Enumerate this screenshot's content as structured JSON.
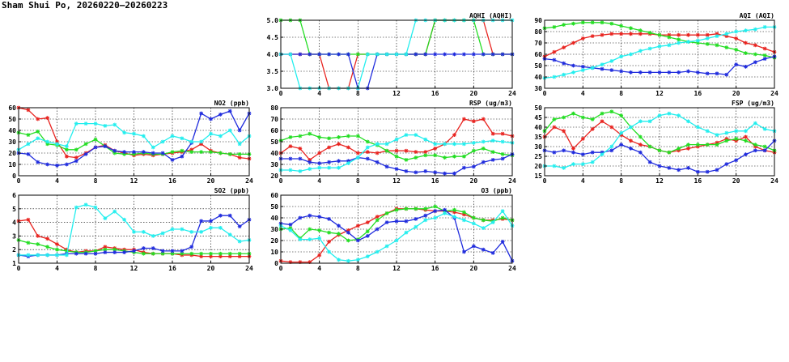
{
  "page": {
    "title": "Sham Shui Po, 20260220–20260223"
  },
  "colors": {
    "red": "#e8231f",
    "green": "#22dd22",
    "blue": "#1f2bdd",
    "cyan": "#22eeee"
  },
  "chart_data": [
    {
      "id": "no2",
      "type": "line",
      "title": "NO2 (ppb)",
      "xlim": [
        0,
        24
      ],
      "ylim": [
        0,
        60
      ],
      "xticks": [
        0,
        4,
        8,
        12,
        16,
        20,
        24
      ],
      "yticks": [
        0,
        10,
        20,
        30,
        40,
        50,
        60
      ],
      "x": [
        0,
        1,
        2,
        3,
        4,
        5,
        6,
        7,
        8,
        9,
        10,
        11,
        12,
        13,
        14,
        15,
        16,
        17,
        18,
        19,
        20,
        21,
        22,
        23,
        24
      ],
      "series": [
        {
          "color": "red",
          "values": [
            60,
            58,
            50,
            51,
            30,
            17,
            16,
            20,
            25,
            27,
            22,
            20,
            18,
            19,
            18,
            19,
            20,
            21,
            23,
            28,
            22,
            20,
            19,
            16,
            15
          ]
        },
        {
          "color": "green",
          "values": [
            38,
            36,
            39,
            28,
            27,
            23,
            23,
            28,
            32,
            26,
            20,
            19,
            19,
            20,
            19,
            19,
            21,
            22,
            21,
            21,
            21,
            20,
            19,
            19,
            19
          ]
        },
        {
          "color": "blue",
          "values": [
            20,
            19,
            12,
            10,
            9,
            10,
            13,
            19,
            25,
            26,
            22,
            21,
            21,
            21,
            20,
            20,
            14,
            17,
            29,
            55,
            50,
            54,
            57,
            40,
            55
          ]
        },
        {
          "color": "cyan",
          "values": [
            23,
            28,
            33,
            30,
            28,
            26,
            46,
            46,
            46,
            44,
            45,
            38,
            37,
            35,
            25,
            30,
            35,
            33,
            30,
            30,
            37,
            35,
            40,
            28,
            35
          ]
        }
      ]
    },
    {
      "id": "so2",
      "type": "line",
      "title": "SO2 (ppb)",
      "xlim": [
        0,
        24
      ],
      "ylim": [
        1,
        6
      ],
      "xticks": [
        0,
        4,
        8,
        12,
        16,
        20,
        24
      ],
      "yticks": [
        1,
        2,
        3,
        4,
        5,
        6
      ],
      "x": [
        0,
        1,
        2,
        3,
        4,
        5,
        6,
        7,
        8,
        9,
        10,
        11,
        12,
        13,
        14,
        15,
        16,
        17,
        18,
        19,
        20,
        21,
        22,
        23,
        24
      ],
      "series": [
        {
          "color": "red",
          "values": [
            4.1,
            4.2,
            3.0,
            2.8,
            2.4,
            2.0,
            1.8,
            1.9,
            1.9,
            2.2,
            2.1,
            2.0,
            2.0,
            1.8,
            1.7,
            1.7,
            1.7,
            1.6,
            1.6,
            1.5,
            1.5,
            1.5,
            1.5,
            1.5,
            1.5
          ]
        },
        {
          "color": "green",
          "values": [
            2.7,
            2.5,
            2.4,
            2.2,
            2.0,
            1.9,
            1.8,
            1.8,
            1.9,
            2.0,
            2.0,
            1.9,
            1.8,
            1.7,
            1.7,
            1.7,
            1.7,
            1.7,
            1.7,
            1.7,
            1.7,
            1.7,
            1.7,
            1.7,
            1.7
          ]
        },
        {
          "color": "blue",
          "values": [
            1.6,
            1.5,
            1.6,
            1.6,
            1.6,
            1.7,
            1.7,
            1.7,
            1.7,
            1.8,
            1.8,
            1.8,
            1.9,
            2.1,
            2.1,
            1.9,
            1.9,
            1.9,
            2.2,
            4.1,
            4.1,
            4.5,
            4.5,
            3.7,
            4.2
          ]
        },
        {
          "color": "cyan",
          "values": [
            1.6,
            1.6,
            1.6,
            1.6,
            1.6,
            1.6,
            5.1,
            5.3,
            5.1,
            4.3,
            4.8,
            4.2,
            3.3,
            3.3,
            3.0,
            3.2,
            3.5,
            3.5,
            3.3,
            3.3,
            3.6,
            3.6,
            3.1,
            2.6,
            2.7
          ]
        }
      ]
    },
    {
      "id": "aqhi",
      "type": "line",
      "title": "AQHI (AQHI)",
      "xlim": [
        0,
        24
      ],
      "ylim": [
        3,
        5
      ],
      "xticks": [
        0,
        4,
        8,
        12,
        16,
        20,
        24
      ],
      "yticks": [
        3.0,
        3.5,
        4.0,
        4.5,
        5.0
      ],
      "x": [
        0,
        1,
        2,
        3,
        4,
        5,
        6,
        7,
        8,
        9,
        10,
        11,
        12,
        13,
        14,
        15,
        16,
        17,
        18,
        19,
        20,
        21,
        22,
        23,
        24
      ],
      "series": [
        {
          "color": "red",
          "values": [
            4,
            4,
            4,
            4,
            4,
            3,
            3,
            3,
            4,
            4,
            4,
            4,
            4,
            4,
            4,
            4,
            5,
            5,
            5,
            5,
            5,
            5,
            4,
            4,
            4
          ]
        },
        {
          "color": "green",
          "values": [
            5,
            5,
            5,
            4,
            4,
            4,
            4,
            4,
            4,
            4,
            4,
            4,
            4,
            4,
            4,
            4,
            5,
            5,
            5,
            5,
            5,
            4,
            4,
            4,
            4
          ]
        },
        {
          "color": "blue",
          "values": [
            4,
            4,
            4,
            4,
            4,
            4,
            4,
            4,
            3,
            3,
            4,
            4,
            4,
            4,
            4,
            4,
            4,
            4,
            4,
            4,
            4,
            4,
            4,
            4,
            4
          ]
        },
        {
          "color": "cyan",
          "values": [
            4,
            4,
            3,
            3,
            3,
            3,
            3,
            3,
            3,
            4,
            4,
            4,
            4,
            4,
            5,
            5,
            5,
            5,
            5,
            5,
            5,
            5,
            5,
            5,
            5
          ]
        }
      ]
    },
    {
      "id": "rsp",
      "type": "line",
      "title": "RSP (ug/m3)",
      "xlim": [
        0,
        24
      ],
      "ylim": [
        20,
        80
      ],
      "xticks": [
        0,
        4,
        8,
        12,
        16,
        20,
        24
      ],
      "yticks": [
        20,
        30,
        40,
        50,
        60,
        70,
        80
      ],
      "x": [
        0,
        1,
        2,
        3,
        4,
        5,
        6,
        7,
        8,
        9,
        10,
        11,
        12,
        13,
        14,
        15,
        16,
        17,
        18,
        19,
        20,
        21,
        22,
        23,
        24
      ],
      "series": [
        {
          "color": "red",
          "values": [
            40,
            46,
            44,
            34,
            40,
            45,
            48,
            45,
            40,
            41,
            40,
            42,
            42,
            42,
            41,
            41,
            44,
            48,
            56,
            70,
            68,
            70,
            57,
            57,
            55
          ]
        },
        {
          "color": "green",
          "values": [
            51,
            54,
            55,
            57,
            54,
            53,
            54,
            55,
            55,
            50,
            47,
            42,
            37,
            34,
            36,
            38,
            38,
            36,
            37,
            37,
            42,
            44,
            41,
            39,
            38
          ]
        },
        {
          "color": "blue",
          "values": [
            35,
            35,
            35,
            32,
            31,
            32,
            33,
            33,
            36,
            35,
            32,
            28,
            26,
            24,
            23,
            24,
            23,
            22,
            22,
            27,
            28,
            32,
            34,
            35,
            39
          ]
        },
        {
          "color": "cyan",
          "values": [
            25,
            25,
            24,
            26,
            27,
            27,
            27,
            31,
            36,
            45,
            48,
            48,
            52,
            56,
            56,
            52,
            48,
            48,
            48,
            48,
            49,
            50,
            51,
            50,
            49
          ]
        }
      ]
    },
    {
      "id": "o3",
      "type": "line",
      "title": "O3 (ppb)",
      "xlim": [
        0,
        24
      ],
      "ylim": [
        0,
        60
      ],
      "xticks": [
        0,
        4,
        8,
        12,
        16,
        20,
        24
      ],
      "yticks": [
        0,
        10,
        20,
        30,
        40,
        50,
        60
      ],
      "x": [
        0,
        1,
        2,
        3,
        4,
        5,
        6,
        7,
        8,
        9,
        10,
        11,
        12,
        13,
        14,
        15,
        16,
        17,
        18,
        19,
        20,
        21,
        22,
        23,
        24
      ],
      "series": [
        {
          "color": "red",
          "values": [
            2,
            1,
            1,
            1,
            7,
            19,
            25,
            29,
            33,
            36,
            41,
            44,
            48,
            48,
            48,
            47,
            46,
            46,
            45,
            43,
            40,
            38,
            38,
            39,
            38
          ]
        },
        {
          "color": "green",
          "values": [
            30,
            31,
            22,
            30,
            29,
            27,
            26,
            20,
            21,
            28,
            38,
            44,
            47,
            48,
            48,
            48,
            50,
            46,
            47,
            45,
            40,
            38,
            37,
            40,
            38
          ]
        },
        {
          "color": "blue",
          "values": [
            35,
            34,
            40,
            42,
            41,
            39,
            33,
            27,
            20,
            24,
            30,
            36,
            37,
            37,
            39,
            42,
            46,
            47,
            40,
            10,
            15,
            12,
            9,
            19,
            2
          ]
        },
        {
          "color": "cyan",
          "values": [
            33,
            29,
            21,
            21,
            22,
            10,
            3,
            2,
            3,
            6,
            10,
            15,
            20,
            27,
            32,
            38,
            40,
            44,
            41,
            38,
            35,
            31,
            36,
            46,
            33
          ]
        }
      ]
    },
    {
      "id": "aqi",
      "type": "line",
      "title": "AQI (AQI)",
      "xlim": [
        0,
        24
      ],
      "ylim": [
        30,
        90
      ],
      "xticks": [
        0,
        4,
        8,
        12,
        16,
        20,
        24
      ],
      "yticks": [
        30,
        40,
        50,
        60,
        70,
        80,
        90
      ],
      "x": [
        0,
        1,
        2,
        3,
        4,
        5,
        6,
        7,
        8,
        9,
        10,
        11,
        12,
        13,
        14,
        15,
        16,
        17,
        18,
        19,
        20,
        21,
        22,
        23,
        24
      ],
      "series": [
        {
          "color": "red",
          "values": [
            58,
            62,
            66,
            70,
            74,
            76,
            77,
            78,
            78,
            78,
            78,
            78,
            77,
            77,
            77,
            77,
            77,
            77,
            78,
            76,
            74,
            70,
            68,
            65,
            62
          ]
        },
        {
          "color": "green",
          "values": [
            83,
            84,
            86,
            87,
            88,
            88,
            88,
            87,
            85,
            83,
            81,
            79,
            77,
            75,
            73,
            71,
            70,
            69,
            68,
            66,
            64,
            61,
            60,
            59,
            57
          ]
        },
        {
          "color": "blue",
          "values": [
            56,
            55,
            52,
            50,
            49,
            48,
            47,
            46,
            45,
            44,
            44,
            44,
            44,
            44,
            44,
            45,
            44,
            43,
            43,
            42,
            51,
            49,
            53,
            56,
            58
          ]
        },
        {
          "color": "cyan",
          "values": [
            39,
            40,
            42,
            44,
            46,
            48,
            51,
            54,
            58,
            60,
            63,
            65,
            67,
            68,
            70,
            71,
            72,
            74,
            76,
            78,
            80,
            81,
            82,
            84,
            84
          ]
        }
      ]
    },
    {
      "id": "fsp",
      "type": "line",
      "title": "FSP (ug/m3)",
      "xlim": [
        0,
        24
      ],
      "ylim": [
        15,
        50
      ],
      "xticks": [
        0,
        4,
        8,
        12,
        16,
        20,
        24
      ],
      "yticks": [
        15,
        20,
        25,
        30,
        35,
        40,
        45,
        50
      ],
      "x": [
        0,
        1,
        2,
        3,
        4,
        5,
        6,
        7,
        8,
        9,
        10,
        11,
        12,
        13,
        14,
        15,
        16,
        17,
        18,
        19,
        20,
        21,
        22,
        23,
        24
      ],
      "series": [
        {
          "color": "red",
          "values": [
            35,
            40,
            38,
            29,
            34,
            39,
            43,
            40,
            36,
            33,
            31,
            30,
            28,
            27,
            28,
            29,
            30,
            31,
            32,
            34,
            33,
            35,
            30,
            28,
            27
          ]
        },
        {
          "color": "green",
          "values": [
            38,
            44,
            45,
            47,
            45,
            44,
            47,
            48,
            46,
            40,
            35,
            30,
            28,
            27,
            29,
            31,
            31,
            31,
            31,
            33,
            34,
            33,
            31,
            30,
            28
          ]
        },
        {
          "color": "blue",
          "values": [
            28,
            27,
            28,
            27,
            26,
            27,
            27,
            28,
            31,
            29,
            27,
            22,
            20,
            19,
            18,
            19,
            17,
            17,
            18,
            21,
            23,
            26,
            28,
            28,
            33
          ]
        },
        {
          "color": "cyan",
          "values": [
            20,
            20,
            19,
            21,
            21,
            22,
            26,
            30,
            37,
            40,
            43,
            43,
            46,
            47,
            46,
            43,
            40,
            38,
            36,
            37,
            38,
            38,
            42,
            39,
            38
          ]
        }
      ]
    }
  ]
}
